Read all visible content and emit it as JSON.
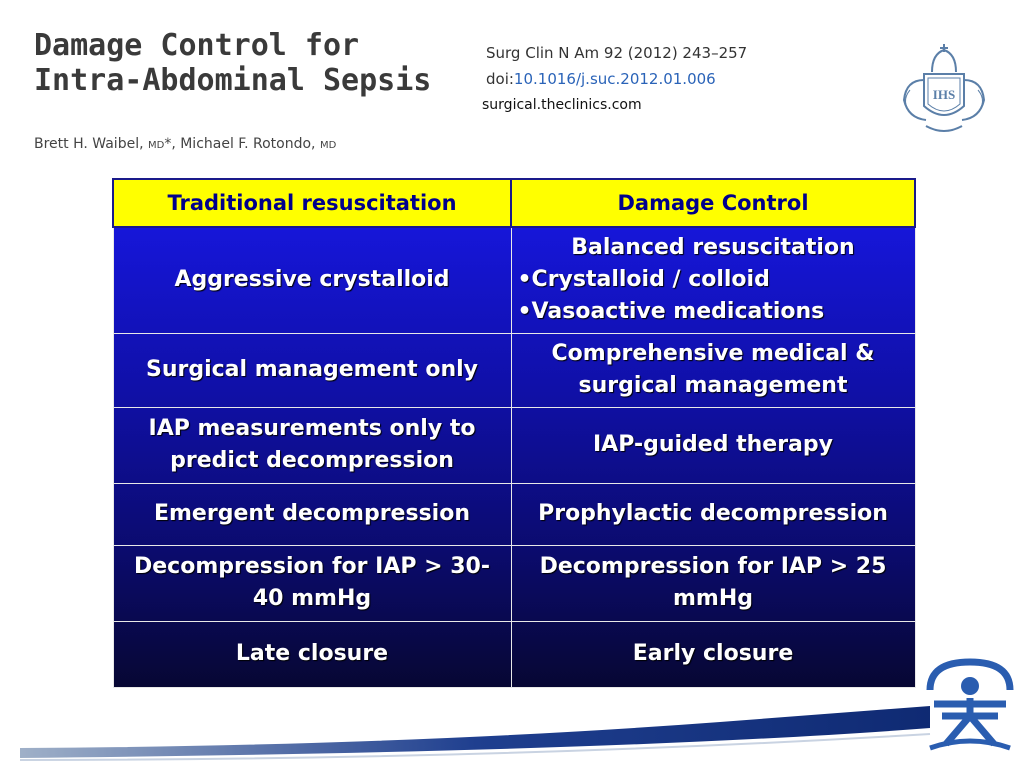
{
  "title": {
    "line1": "Damage Control for",
    "line2": "Intra-Abdominal Sepsis"
  },
  "citation": {
    "journal": "Surg Clin N Am 92 (2012) 243–257",
    "doi_prefix": "doi:",
    "doi": "10.1016/j.suc.2012.01.006",
    "site_a": "surgical",
    "site_b": ".theclinics.com"
  },
  "authors": {
    "author1": "Brett H. Waibel, ",
    "degree1": "MD",
    "sep": "*, ",
    "author2": "Michael F. Rotondo, ",
    "degree2": "MD"
  },
  "table": {
    "headers": [
      "Traditional resuscitation",
      "Damage Control"
    ],
    "rows": [
      {
        "traditional": "Aggressive crystalloid",
        "damage": {
          "head": "Balanced resuscitation",
          "items": [
            "•Crystalloid / colloid",
            "•Vasoactive medications"
          ]
        }
      },
      {
        "traditional": "Surgical management only",
        "damage": "Comprehensive medical & surgical management"
      },
      {
        "traditional": "IAP measurements only to predict decompression",
        "damage": "IAP-guided therapy"
      },
      {
        "traditional": "Emergent decompression",
        "damage": "Prophylactic decompression"
      },
      {
        "traditional": "Decompression for IAP > 30-40 mmHg",
        "damage": "Decompression for IAP > 25 mmHg"
      },
      {
        "traditional": "Late closure",
        "damage": "Early closure"
      }
    ]
  },
  "crest": {
    "letters": "IHS"
  },
  "colors": {
    "header_bg": "#ffff00",
    "header_text": "#00008b",
    "cell_bg": "#1212c0",
    "title": "#3a3a3a",
    "link": "#2a63b8"
  },
  "icons": {
    "crest": "institution-crest-icon",
    "logo": "institution-logo-icon"
  }
}
